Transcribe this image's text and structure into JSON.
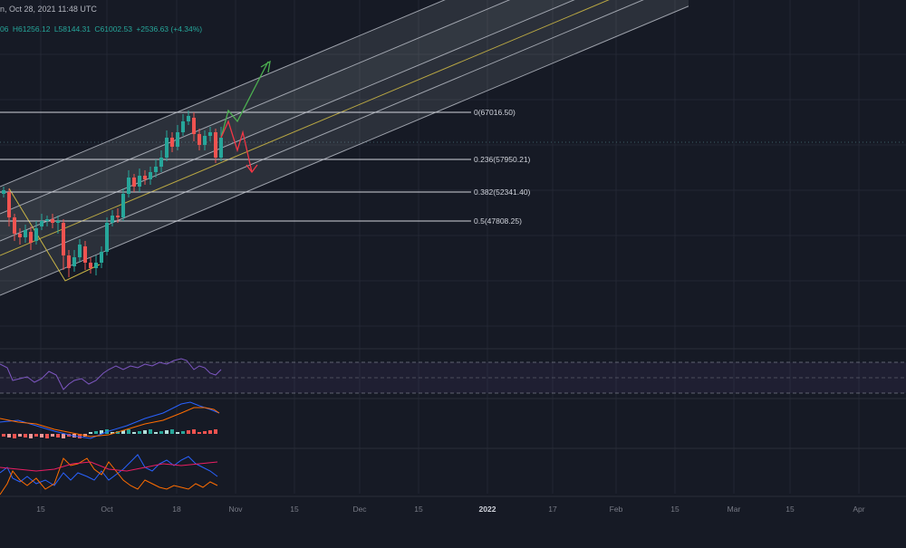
{
  "header": {
    "title_fragment": "n, Oct 28, 2021 11:48 UTC",
    "ohlc": {
      "open": "06",
      "high": "H61256.12",
      "low": "L58144.31",
      "close": "C61002.53",
      "change": "+2536.63 (+4.34%)"
    }
  },
  "fib_levels": [
    {
      "label": "0(67016.50)",
      "ratio": 0,
      "price": 67016.5
    },
    {
      "label": "0.236(57950.21)",
      "ratio": 0.236,
      "price": 57950.21
    },
    {
      "label": "0.382(52341.40)",
      "ratio": 0.382,
      "price": 52341.4
    },
    {
      "label": "0.5(47808.25)",
      "ratio": 0.5,
      "price": 47808.25
    }
  ],
  "time_axis": [
    {
      "label": "15",
      "bold": false
    },
    {
      "label": "Oct",
      "bold": false
    },
    {
      "label": "18",
      "bold": false
    },
    {
      "label": "Nov",
      "bold": false
    },
    {
      "label": "15",
      "bold": false
    },
    {
      "label": "Dec",
      "bold": false
    },
    {
      "label": "15",
      "bold": false
    },
    {
      "label": "2022",
      "bold": true
    },
    {
      "label": "17",
      "bold": false
    },
    {
      "label": "Feb",
      "bold": false
    },
    {
      "label": "15",
      "bold": false
    },
    {
      "label": "Mar",
      "bold": false
    },
    {
      "label": "15",
      "bold": false
    },
    {
      "label": "Apr",
      "bold": false
    }
  ],
  "colors": {
    "background": "#161a25",
    "grid": "#232733",
    "up": "#26a69a",
    "down": "#ef5350",
    "fib_line": "#d1d4dc",
    "channel_fill": "#b2b5be",
    "median_line": "#c9b545",
    "rsi_line": "#7e57c2",
    "macd_line": "#2962ff",
    "signal_line": "#ff6d00",
    "dmi_plus": "#2962ff",
    "dmi_minus": "#ff6d00",
    "adx": "#e91e63",
    "projection_up": "#4caf50",
    "projection_down": "#f23645"
  }
}
